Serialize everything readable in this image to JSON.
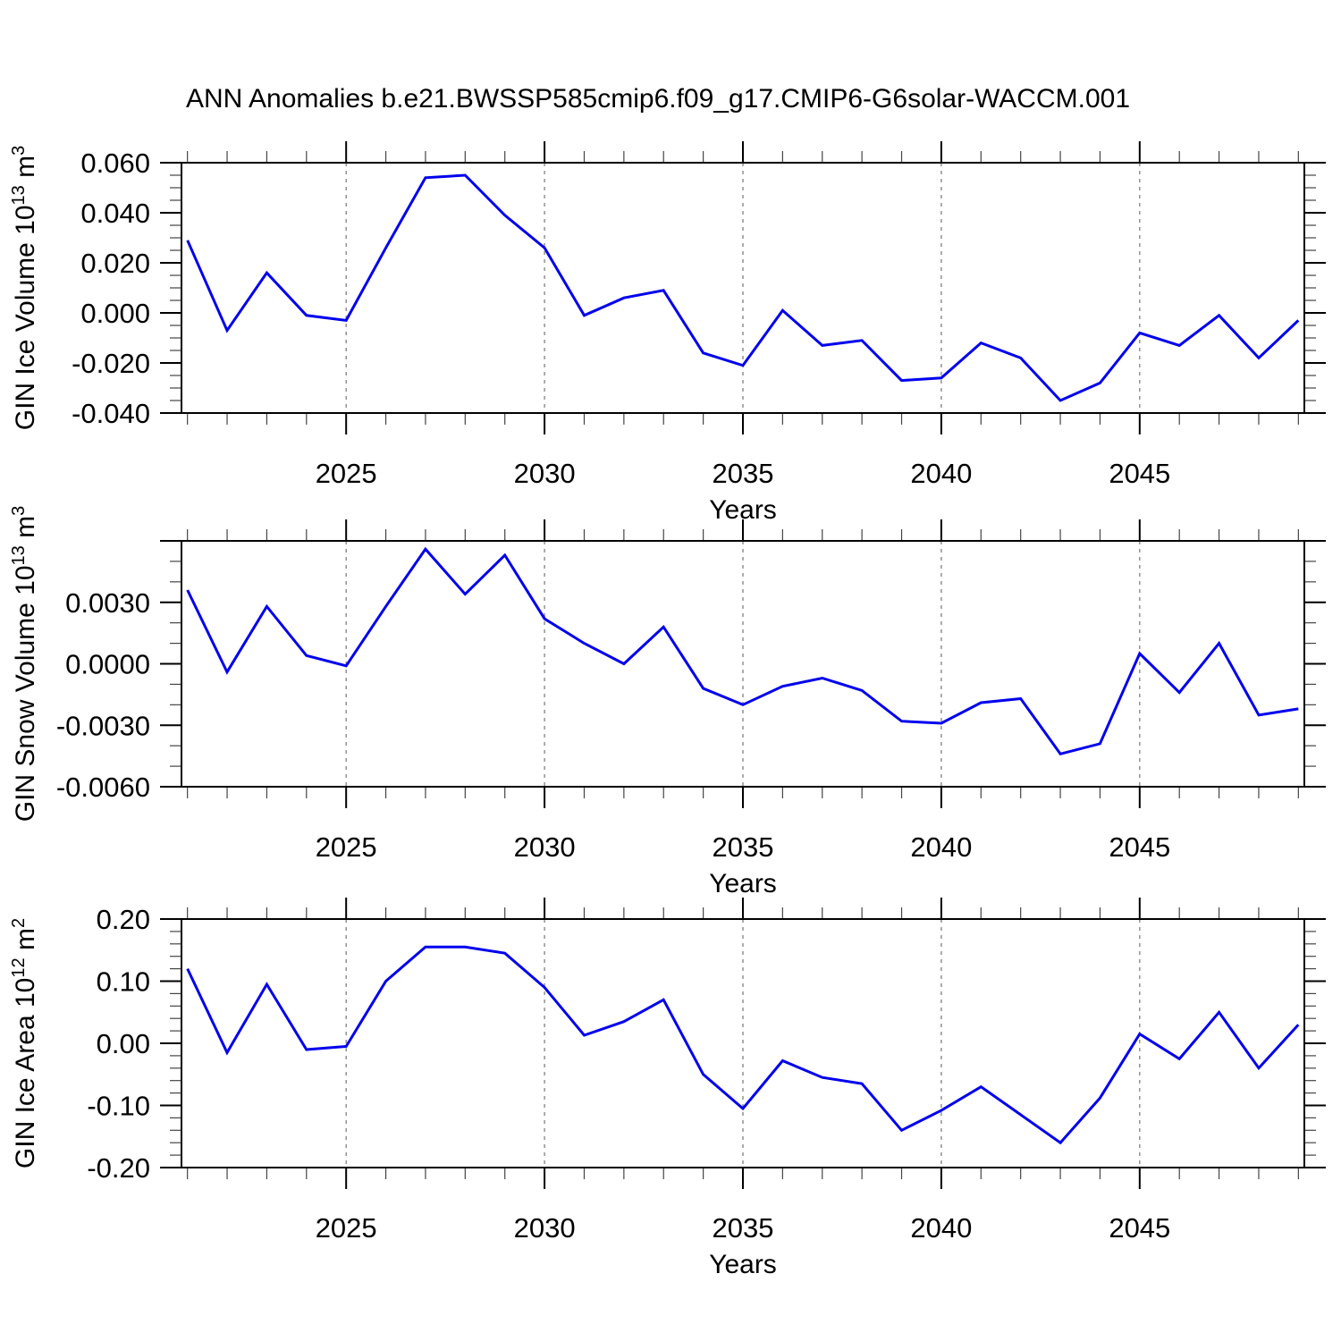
{
  "title": "ANN Anomalies b.e21.BWSSP585cmip6.f09_g17.CMIP6-G6solar-WACCM.001",
  "colors": {
    "line": "#0000ee",
    "axis": "#000000",
    "grid": "#808080",
    "background": "#ffffff"
  },
  "chart_data": [
    {
      "type": "line",
      "name": "gin-ice-volume",
      "ylabel": {
        "text": "GIN Ice Volume 10",
        "sup": "13",
        "unit": " m",
        "unit_sup": "3"
      },
      "xlabel": "Years",
      "x": [
        2021,
        2022,
        2023,
        2024,
        2025,
        2026,
        2027,
        2028,
        2029,
        2030,
        2031,
        2032,
        2033,
        2034,
        2035,
        2036,
        2037,
        2038,
        2039,
        2040,
        2041,
        2042,
        2043,
        2044,
        2045,
        2046,
        2047,
        2048,
        2049
      ],
      "values": [
        0.029,
        -0.007,
        0.016,
        -0.001,
        -0.003,
        0.026,
        0.054,
        0.055,
        0.039,
        0.026,
        -0.001,
        0.006,
        0.009,
        -0.016,
        -0.021,
        0.001,
        -0.013,
        -0.011,
        -0.027,
        -0.026,
        -0.012,
        -0.018,
        -0.035,
        -0.028,
        -0.008,
        -0.013,
        -0.001,
        -0.018,
        -0.003
      ],
      "xlim": [
        2020.85,
        2049.15
      ],
      "ylim": [
        -0.04,
        0.06
      ],
      "xticks_major": [
        2025,
        2030,
        2035,
        2040,
        2045
      ],
      "xtick_labels": [
        "2025",
        "2030",
        "2035",
        "2040",
        "2045"
      ],
      "xticks_minor_step": 1,
      "yticks_major": [
        -0.04,
        -0.02,
        0.0,
        0.02,
        0.04,
        0.06
      ],
      "ytick_labels": [
        "-0.040",
        "-0.020",
        "0.000",
        "0.020",
        "0.040",
        "0.060"
      ],
      "yticks_minor_step": 0.005,
      "grid_x": true
    },
    {
      "type": "line",
      "name": "gin-snow-volume",
      "ylabel": {
        "text": "GIN Snow Volume 10",
        "sup": "13",
        "unit": " m",
        "unit_sup": "3"
      },
      "xlabel": "Years",
      "x": [
        2021,
        2022,
        2023,
        2024,
        2025,
        2026,
        2027,
        2028,
        2029,
        2030,
        2031,
        2032,
        2033,
        2034,
        2035,
        2036,
        2037,
        2038,
        2039,
        2040,
        2041,
        2042,
        2043,
        2044,
        2045,
        2046,
        2047,
        2048,
        2049
      ],
      "values": [
        0.0036,
        -0.0004,
        0.0028,
        0.0004,
        -0.0001,
        0.0028,
        0.0056,
        0.0034,
        0.0053,
        0.0022,
        0.001,
        0.0,
        0.0018,
        -0.0012,
        -0.002,
        -0.0011,
        -0.0007,
        -0.0013,
        -0.0028,
        -0.0029,
        -0.0019,
        -0.0017,
        -0.0044,
        -0.0039,
        0.0005,
        -0.0014,
        0.001,
        -0.0025,
        -0.0022
      ],
      "xlim": [
        2020.85,
        2049.15
      ],
      "ylim": [
        -0.006,
        0.006
      ],
      "xticks_major": [
        2025,
        2030,
        2035,
        2040,
        2045
      ],
      "xtick_labels": [
        "2025",
        "2030",
        "2035",
        "2040",
        "2045"
      ],
      "xticks_minor_step": 1,
      "yticks_major": [
        -0.006,
        -0.003,
        0.0,
        0.003,
        0.006
      ],
      "ytick_labels": [
        "-0.0060",
        "-0.0030",
        "0.0000",
        "0.0030",
        ""
      ],
      "yticks_minor_step": 0.001,
      "grid_x": true
    },
    {
      "type": "line",
      "name": "gin-ice-area",
      "ylabel": {
        "text": "GIN Ice Area 10",
        "sup": "12",
        "unit": " m",
        "unit_sup": "2"
      },
      "xlabel": "Years",
      "x": [
        2021,
        2022,
        2023,
        2024,
        2025,
        2026,
        2027,
        2028,
        2029,
        2030,
        2031,
        2032,
        2033,
        2034,
        2035,
        2036,
        2037,
        2038,
        2039,
        2040,
        2041,
        2042,
        2043,
        2044,
        2045,
        2046,
        2047,
        2048,
        2049
      ],
      "values": [
        0.12,
        -0.015,
        0.095,
        -0.01,
        -0.005,
        0.1,
        0.155,
        0.155,
        0.145,
        0.09,
        0.013,
        0.035,
        0.07,
        -0.05,
        -0.105,
        -0.028,
        -0.055,
        -0.065,
        -0.14,
        -0.108,
        -0.07,
        -0.115,
        -0.16,
        -0.088,
        0.015,
        -0.025,
        0.05,
        -0.04,
        0.03
      ],
      "xlim": [
        2020.85,
        2049.15
      ],
      "ylim": [
        -0.2,
        0.2
      ],
      "xticks_major": [
        2025,
        2030,
        2035,
        2040,
        2045
      ],
      "xtick_labels": [
        "2025",
        "2030",
        "2035",
        "2040",
        "2045"
      ],
      "xticks_minor_step": 1,
      "yticks_major": [
        -0.2,
        -0.1,
        0.0,
        0.1,
        0.2
      ],
      "ytick_labels": [
        "-0.20",
        "-0.10",
        "0.00",
        "0.10",
        "0.20"
      ],
      "yticks_minor_step": 0.02,
      "grid_x": true
    }
  ]
}
